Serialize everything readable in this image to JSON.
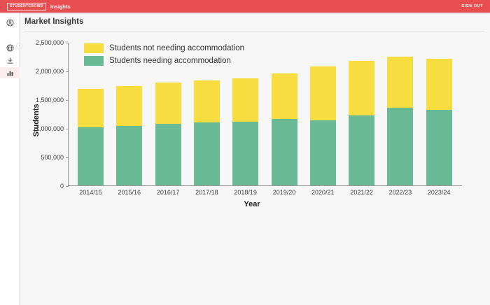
{
  "header": {
    "logo": "STUDENTCROWD",
    "app_name": "Insights",
    "sign_out": "SIGN OUT",
    "background": "#e84d50"
  },
  "sidebar": {
    "active_bg": "#fceeee",
    "items": [
      {
        "icon": "user-icon",
        "active": false
      },
      {
        "icon": "globe-icon",
        "active": false
      },
      {
        "icon": "download-icon",
        "active": false
      },
      {
        "icon": "bar-chart-icon",
        "active": true
      }
    ],
    "expand_chevron": "›"
  },
  "page": {
    "title": "Market Insights"
  },
  "chart_data": {
    "type": "bar",
    "stacked": true,
    "title": "",
    "xlabel": "Year",
    "ylabel": "Students",
    "categories": [
      "2014/15",
      "2015/16",
      "2016/17",
      "2017/18",
      "2018/19",
      "2019/20",
      "2020/21",
      "2021/22",
      "2022/23",
      "2023/24"
    ],
    "series": [
      {
        "name": "Students not needing accommodation",
        "color": "#f7dd40",
        "values": [
          670000,
          690000,
          720000,
          730000,
          755000,
          790000,
          935000,
          950000,
          890000,
          895000
        ]
      },
      {
        "name": "Students needing accommodation",
        "color": "#6abb95",
        "values": [
          1010000,
          1040000,
          1070000,
          1095000,
          1115000,
          1155000,
          1140000,
          1220000,
          1350000,
          1320000
        ]
      }
    ],
    "ylim": [
      0,
      2500000
    ],
    "ytick_interval": 500000,
    "ytick_labels": [
      "0",
      "500,000",
      "1,000,000",
      "1,500,000",
      "2,000,000",
      "2,500,000"
    ],
    "legend_position": "top-left",
    "grid": false
  }
}
